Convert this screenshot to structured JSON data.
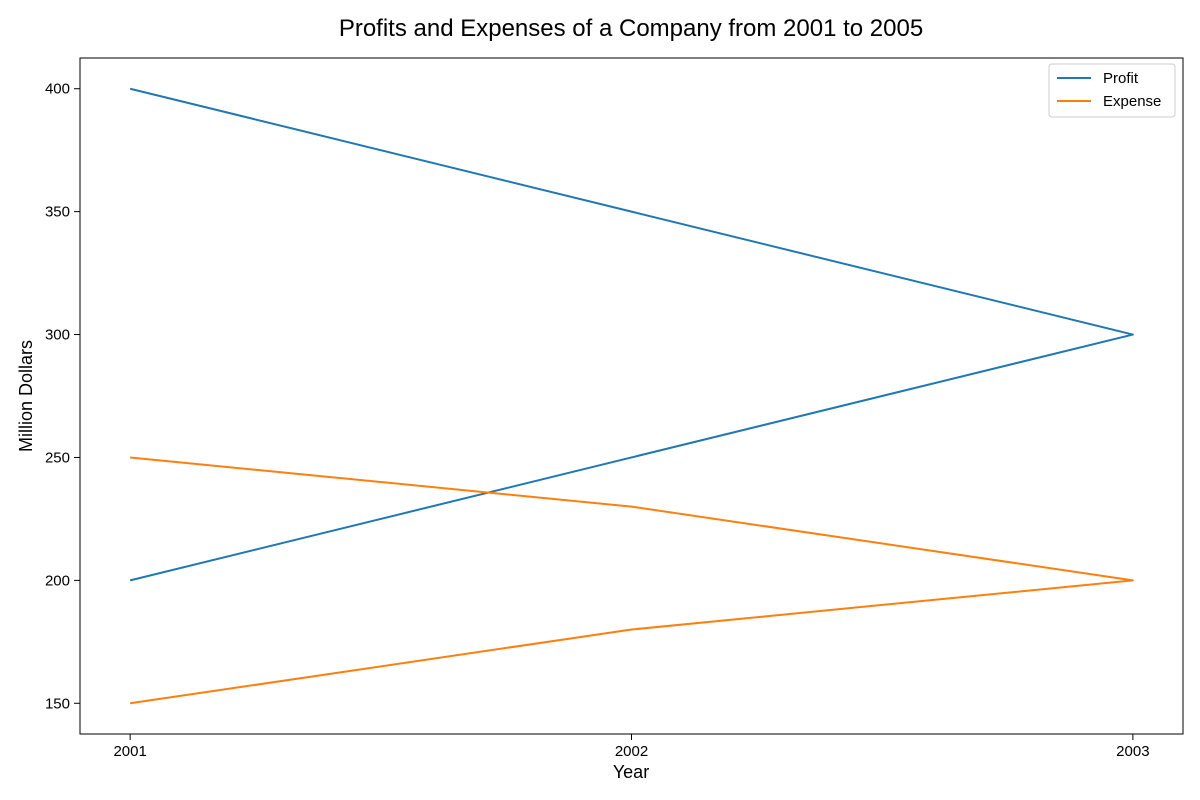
{
  "chart_data": {
    "type": "line",
    "title": "Profits and Expenses of a Company from 2001 to 2005",
    "xlabel": "Year",
    "ylabel": "Million Dollars",
    "x_ticks": [
      "2001",
      "2002",
      "2003"
    ],
    "y_ticks": [
      150,
      200,
      250,
      300,
      350,
      400
    ],
    "xlim": [
      2000.9,
      2003.1
    ],
    "ylim": [
      137.5,
      412.5
    ],
    "grid": false,
    "legend_position": "top-right",
    "series": [
      {
        "name": "Profit",
        "color": "#1f77b4",
        "x": [
          2001,
          2002,
          2003,
          2002,
          2001
        ],
        "y": [
          400,
          350,
          300,
          250,
          200
        ]
      },
      {
        "name": "Expense",
        "color": "#ff7f0e",
        "x": [
          2001,
          2002,
          2003,
          2002,
          2001
        ],
        "y": [
          250,
          230,
          200,
          180,
          150
        ]
      }
    ]
  }
}
